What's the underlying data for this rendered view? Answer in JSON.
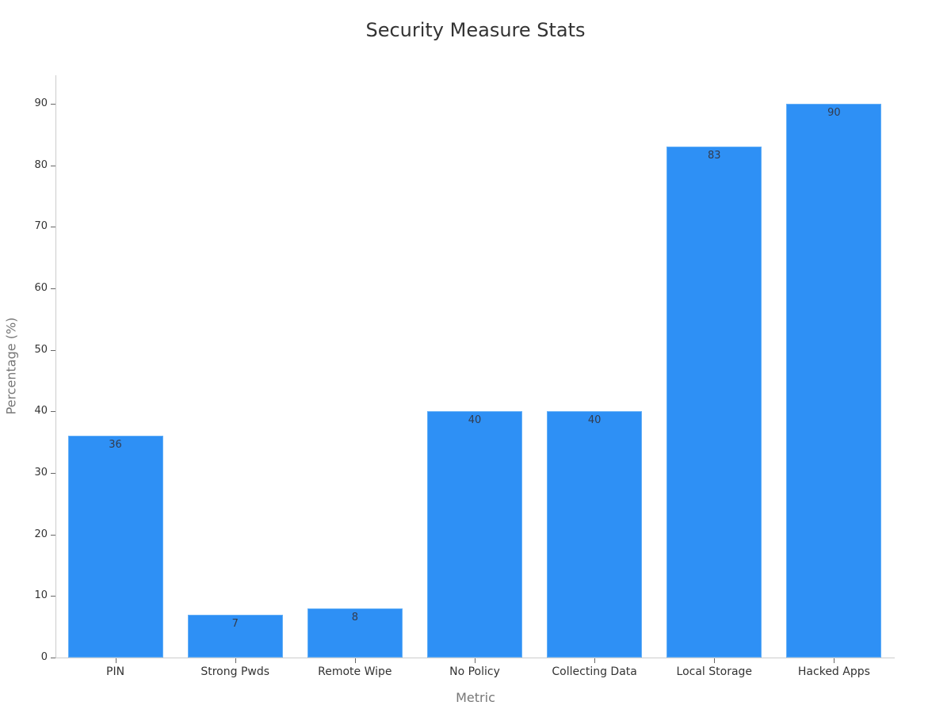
{
  "chart_data": {
    "type": "bar",
    "title": "Security Measure Stats",
    "xlabel": "Metric",
    "ylabel": "Percentage (%)",
    "categories": [
      "PIN",
      "Strong Pwds",
      "Remote Wipe",
      "No Policy",
      "Collecting Data",
      "Local Storage",
      "Hacked Apps"
    ],
    "values": [
      36,
      7,
      8,
      40,
      40,
      83,
      90
    ],
    "data_labels": [
      "36",
      "7",
      "8",
      "40",
      "40",
      "83",
      "90"
    ],
    "ylim": [
      0,
      95
    ],
    "yticks": [
      0,
      10,
      20,
      30,
      40,
      50,
      60,
      70,
      80,
      90
    ],
    "ytick_labels": [
      "0",
      "10",
      "20",
      "30",
      "40",
      "50",
      "60",
      "70",
      "80",
      "90"
    ],
    "grid": false,
    "legend": null,
    "colors": {
      "bar": "#2e90f5",
      "bar_edge": "#63aff7",
      "axis": "#cccccc"
    }
  }
}
